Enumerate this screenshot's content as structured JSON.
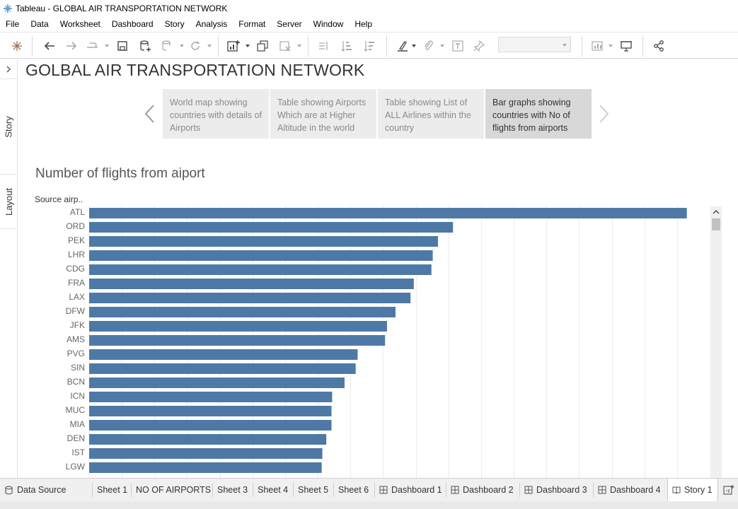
{
  "window": {
    "title": "Tableau - GLOBAL AIR TRANSPORTATION NETWORK"
  },
  "menu": [
    "File",
    "Data",
    "Worksheet",
    "Dashboard",
    "Story",
    "Analysis",
    "Format",
    "Server",
    "Window",
    "Help"
  ],
  "side_rail": {
    "tabs": [
      "Story",
      "Layout"
    ]
  },
  "story": {
    "title": "GOLBAL AIR TRANSPORTATION NETWORK",
    "points": [
      "World map showing countries with details of Airports",
      "Table showing Airports Which are at Higher Altitude in the world",
      "Table showing List of ALL Airlines within the country",
      "Bar graphs showing countries with No of flights from airports"
    ],
    "active_point": 3
  },
  "chart_data": {
    "type": "bar",
    "orientation": "horizontal",
    "title": "Number of flights from aiport",
    "category_header": "Source airp..",
    "categories": [
      "ATL",
      "ORD",
      "PEK",
      "LHR",
      "CDG",
      "FRA",
      "LAX",
      "DFW",
      "JFK",
      "AMS",
      "PVG",
      "SIN",
      "BCN",
      "ICN",
      "MUC",
      "MIA",
      "DEN",
      "IST",
      "LGW"
    ],
    "values": [
      915,
      557,
      534,
      526,
      524,
      497,
      492,
      469,
      456,
      453,
      411,
      408,
      391,
      372,
      371,
      371,
      363,
      357,
      356
    ],
    "xlim": [
      0,
      950
    ],
    "grid": true,
    "bar_color": "#4e79a7"
  },
  "tabs": [
    {
      "label": "Data Source",
      "icon": "database-icon"
    },
    {
      "label": "Sheet 1",
      "icon": ""
    },
    {
      "label": "NO OF AIRPORTS",
      "icon": ""
    },
    {
      "label": "Sheet 3",
      "icon": ""
    },
    {
      "label": "Sheet 4",
      "icon": ""
    },
    {
      "label": "Sheet 5",
      "icon": ""
    },
    {
      "label": "Sheet 6",
      "icon": ""
    },
    {
      "label": "Dashboard 1",
      "icon": "dashboard-icon"
    },
    {
      "label": "Dashboard 2",
      "icon": "dashboard-icon"
    },
    {
      "label": "Dashboard 3",
      "icon": "dashboard-icon"
    },
    {
      "label": "Dashboard 4",
      "icon": "dashboard-icon"
    },
    {
      "label": "Story 1",
      "icon": "story-icon"
    }
  ],
  "active_tab": "Story 1",
  "colors": {
    "accent": "#4e79a7",
    "tableau_blue": "#1f77b4"
  }
}
